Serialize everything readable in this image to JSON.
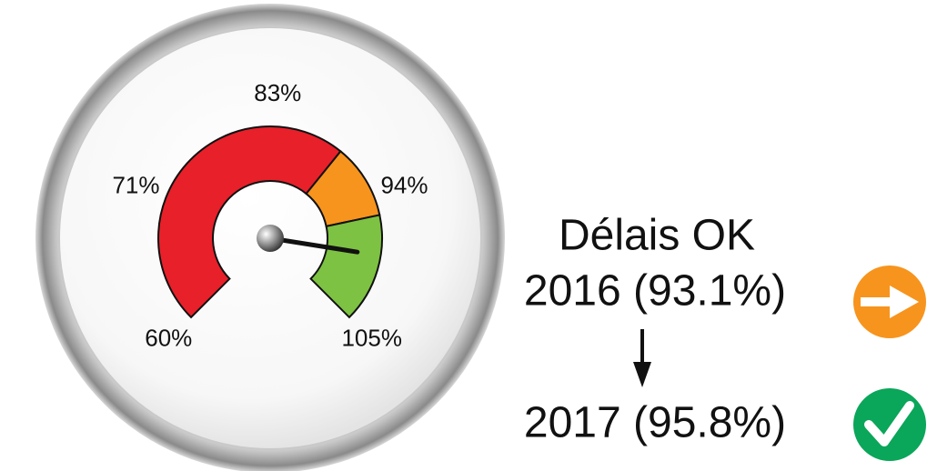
{
  "chart_data": {
    "type": "gauge",
    "ylim": [
      60,
      105
    ],
    "yticks": [
      {
        "value": 60,
        "label": "60%"
      },
      {
        "value": 71,
        "label": "71%"
      },
      {
        "value": 83,
        "label": "83%"
      },
      {
        "value": 94,
        "label": "94%"
      },
      {
        "value": 105,
        "label": "105%"
      }
    ],
    "bands": [
      {
        "color": "#e8202a",
        "range": [
          60,
          89
        ]
      },
      {
        "color": "#f7941d",
        "range": [
          89,
          95.5
        ]
      },
      {
        "color": "#7dc242",
        "range": [
          95.5,
          105
        ]
      }
    ],
    "needle": 99,
    "annotations": [
      "Délais OK",
      "2016 (93.1%)",
      "2017 (95.8%)"
    ]
  }
}
